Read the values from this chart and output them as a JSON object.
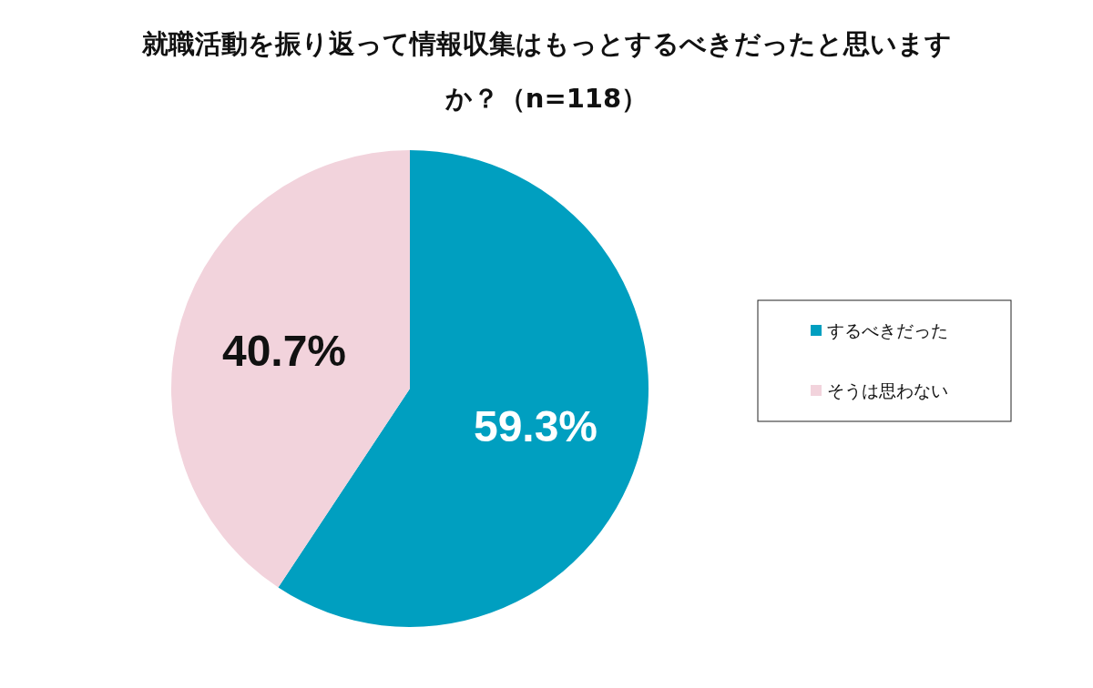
{
  "chart_data": {
    "type": "pie",
    "title": "就職活動を振り返って情報収集はもっとするべきだったと思いますか？（n=118）",
    "categories": [
      "するべきだった",
      "そうは思わない"
    ],
    "values": [
      59.3,
      40.7
    ],
    "colors": [
      "#009fc0",
      "#f2d3dc"
    ],
    "value_labels": [
      "59.3%",
      "40.7%"
    ],
    "legend": "right"
  }
}
